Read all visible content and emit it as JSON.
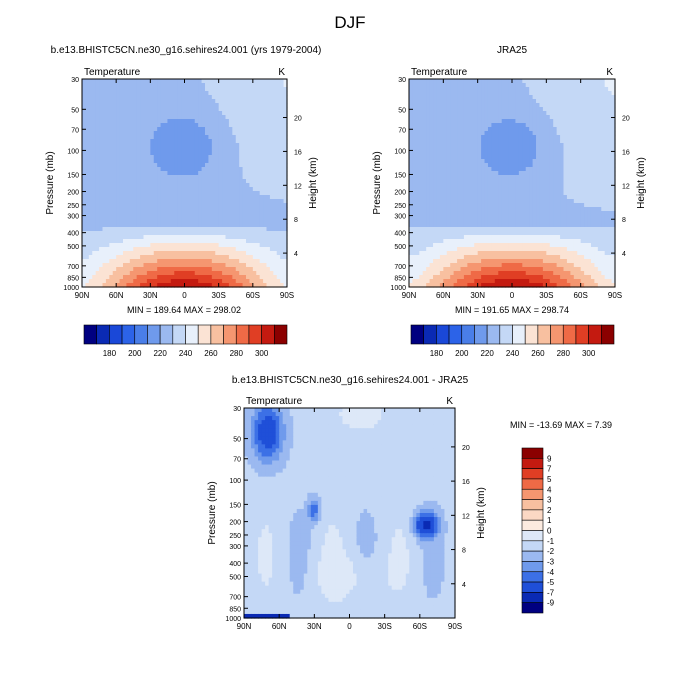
{
  "figure": {
    "season": "DJF"
  },
  "chart_data": [
    {
      "type": "heatmap",
      "title": "b.e13.BHISTC5CN.ne30_g16.sehires24.001 (yrs 1979-2004)",
      "left_label": "Temperature",
      "right_label": "K",
      "xlabel": "",
      "ylabel": "Pressure (mb)",
      "y2label": "Height (km)",
      "x_ticks": [
        "90N",
        "60N",
        "30N",
        "0",
        "30S",
        "60S",
        "90S"
      ],
      "y_ticks": [
        30,
        50,
        70,
        100,
        150,
        200,
        250,
        300,
        400,
        500,
        700,
        850,
        1000
      ],
      "y2_ticks": [
        4,
        8,
        12,
        16,
        20
      ],
      "ylim": [
        1000,
        30
      ],
      "xlim": [
        90,
        -90
      ],
      "stats": "MIN = 189.64  MAX = 298.02",
      "min": 189.64,
      "max": 298.02,
      "colorbar": {
        "orientation": "horizontal",
        "labels": [
          "180",
          "190",
          "200",
          "210",
          "220",
          "230",
          "240",
          "250",
          "260",
          "270",
          "280",
          "290",
          "300"
        ],
        "colors": [
          "#000080",
          "#0a2ab4",
          "#1a48d8",
          "#2c63e8",
          "#4a7ee8",
          "#6f9aec",
          "#9bb9f0",
          "#c4d8f6",
          "#e8f0fb",
          "#fbe3d4",
          "#f8c0a0",
          "#f59670",
          "#ef6a46",
          "#e03e24",
          "#c41a10",
          "#8b0000"
        ]
      }
    },
    {
      "type": "heatmap",
      "title": "JRA25",
      "left_label": "Temperature",
      "right_label": "K",
      "xlabel": "",
      "ylabel": "Pressure (mb)",
      "y2label": "Height (km)",
      "x_ticks": [
        "90N",
        "60N",
        "30N",
        "0",
        "30S",
        "60S",
        "90S"
      ],
      "y_ticks": [
        30,
        50,
        70,
        100,
        150,
        200,
        250,
        300,
        400,
        500,
        700,
        850,
        1000
      ],
      "y2_ticks": [
        4,
        8,
        12,
        16,
        20
      ],
      "ylim": [
        1000,
        30
      ],
      "xlim": [
        90,
        -90
      ],
      "stats": "MIN = 191.65  MAX = 298.74",
      "min": 191.65,
      "max": 298.74,
      "colorbar": {
        "orientation": "horizontal",
        "labels": [
          "180",
          "190",
          "200",
          "210",
          "220",
          "230",
          "240",
          "250",
          "260",
          "270",
          "280",
          "290",
          "300"
        ],
        "colors": [
          "#000080",
          "#0a2ab4",
          "#1a48d8",
          "#2c63e8",
          "#4a7ee8",
          "#6f9aec",
          "#9bb9f0",
          "#c4d8f6",
          "#e8f0fb",
          "#fbe3d4",
          "#f8c0a0",
          "#f59670",
          "#ef6a46",
          "#e03e24",
          "#c41a10",
          "#8b0000"
        ]
      }
    },
    {
      "type": "heatmap",
      "title": "b.e13.BHISTC5CN.ne30_g16.sehires24.001 - JRA25",
      "left_label": "Temperature",
      "right_label": "K",
      "xlabel": "",
      "ylabel": "Pressure (mb)",
      "y2label": "Height (km)",
      "x_ticks": [
        "90N",
        "60N",
        "30N",
        "0",
        "30S",
        "60S",
        "90S"
      ],
      "y_ticks": [
        30,
        50,
        70,
        100,
        150,
        200,
        250,
        300,
        400,
        500,
        700,
        850,
        1000
      ],
      "y2_ticks": [
        4,
        8,
        12,
        16,
        20
      ],
      "ylim": [
        1000,
        30
      ],
      "xlim": [
        90,
        -90
      ],
      "stats": "MIN = -13.69  MAX =   7.39",
      "min": -13.69,
      "max": 7.39,
      "colorbar": {
        "orientation": "vertical",
        "labels": [
          "9",
          "7",
          "5",
          "4",
          "3",
          "2",
          "1",
          "0",
          "-1",
          "-2",
          "-3",
          "-4",
          "-5",
          "-7",
          "-9"
        ],
        "colors": [
          "#8b0000",
          "#c41a10",
          "#e03e24",
          "#ef6a46",
          "#f59670",
          "#f8c0a0",
          "#fbd8c4",
          "#fcebe0",
          "#dde8f8",
          "#c4d8f6",
          "#9bb9f0",
          "#6f9aec",
          "#3c70e6",
          "#1f4fd8",
          "#0a2ab4",
          "#000080"
        ]
      }
    }
  ]
}
